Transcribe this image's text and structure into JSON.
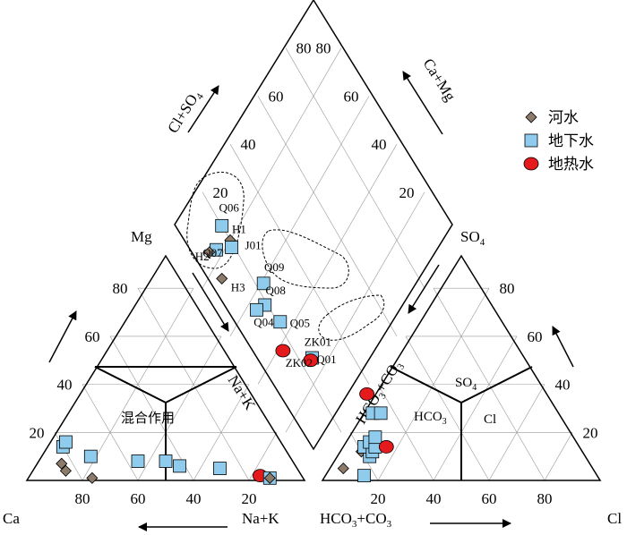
{
  "chart_data": {
    "type": "scatter",
    "subtype": "piper-trilinear",
    "grid": true,
    "legend_position": "top-right",
    "series": [
      {
        "name": "河水",
        "marker": "diamond",
        "color": "#8c7a6b"
      },
      {
        "name": "地下水",
        "marker": "square",
        "color": "#8ecbec"
      },
      {
        "name": "地热水",
        "marker": "circle",
        "color": "#e41a1c"
      }
    ],
    "cation_ticks": [
      "20",
      "40",
      "60",
      "80"
    ],
    "anion_ticks": [
      "20",
      "40",
      "60",
      "80"
    ],
    "diamond_ticks": [
      "20",
      "40",
      "60",
      "80"
    ],
    "axis_labels": {
      "ca": "Ca",
      "mg": "Mg",
      "nak": "Na+K",
      "nak_side": "Na+K",
      "cl_bottom": "Cl",
      "so4": "SO4",
      "hco3_bottom": "HCO3+CO3",
      "hco3_side": "HCO3+CO3",
      "cl_so4": "Cl+SO4",
      "ca_mg": "Ca+Mg"
    },
    "zone_labels": {
      "mixed": "混合作用",
      "hco3": "HCO3",
      "so4": "SO4",
      "cl": "Cl"
    },
    "cation_points": [
      {
        "series": 0,
        "ca": 84,
        "mg": 7
      },
      {
        "series": 0,
        "ca": 84,
        "mg": 4
      },
      {
        "series": 0,
        "ca": 76,
        "mg": 1
      },
      {
        "series": 1,
        "ca": 80,
        "mg": 14
      },
      {
        "series": 1,
        "ca": 78,
        "mg": 16
      },
      {
        "series": 1,
        "ca": 72,
        "mg": 10
      },
      {
        "series": 1,
        "ca": 56,
        "mg": 8
      },
      {
        "series": 1,
        "ca": 46,
        "mg": 8
      },
      {
        "series": 1,
        "ca": 42,
        "mg": 6
      },
      {
        "series": 1,
        "ca": 28,
        "mg": 5
      },
      {
        "series": 2,
        "ca": 15,
        "mg": 2
      },
      {
        "series": 1,
        "ca": 12,
        "mg": 1
      },
      {
        "series": 0,
        "ca": 12,
        "mg": 1
      }
    ],
    "anion_points": [
      {
        "series": 0,
        "hco3": 90,
        "so4": 5
      },
      {
        "series": 1,
        "hco3": 84,
        "so4": 2
      },
      {
        "series": 0,
        "hco3": 80,
        "so4": 12
      },
      {
        "series": 1,
        "hco3": 78,
        "so4": 10
      },
      {
        "series": 1,
        "hco3": 78,
        "so4": 14
      },
      {
        "series": 1,
        "hco3": 76,
        "so4": 12
      },
      {
        "series": 1,
        "hco3": 75,
        "so4": 16
      },
      {
        "series": 1,
        "hco3": 74,
        "so4": 14
      },
      {
        "series": 1,
        "hco3": 72,
        "so4": 18
      },
      {
        "series": 2,
        "hco3": 70,
        "so4": 14
      },
      {
        "series": 1,
        "hco3": 68,
        "so4": 28
      },
      {
        "series": 1,
        "hco3": 65,
        "so4": 28
      },
      {
        "series": 2,
        "hco3": 66,
        "so4": 36
      }
    ],
    "diamond_points": [
      {
        "series": 1,
        "label": "Q06",
        "clso4": 20,
        "camg": 86
      },
      {
        "series": 0,
        "label": "H1",
        "clso4": 20,
        "camg": 80
      },
      {
        "series": 1,
        "label": "J01",
        "clso4": 19,
        "camg": 78
      },
      {
        "series": 1,
        "label": "Q07",
        "clso4": 13,
        "camg": 83
      },
      {
        "series": 0,
        "label": "H2",
        "clso4": 10,
        "camg": 85
      },
      {
        "series": 0,
        "label": "H3",
        "clso4": 9,
        "camg": 75
      },
      {
        "series": 1,
        "label": "Q09",
        "clso4": 23,
        "camg": 59
      },
      {
        "series": 1,
        "label": "Q08",
        "clso4": 19,
        "camg": 54
      },
      {
        "series": 1,
        "label": "Q04",
        "clso4": 15,
        "camg": 56
      },
      {
        "series": 1,
        "label": "Q05",
        "clso4": 21,
        "camg": 45
      },
      {
        "series": 1,
        "label": "Q01",
        "clso4": 25,
        "camg": 26
      },
      {
        "series": 2,
        "label": "ZK01",
        "clso4": 24,
        "camg": 26
      },
      {
        "series": 2,
        "label": "ZK02",
        "clso4": 16,
        "camg": 38
      }
    ]
  }
}
